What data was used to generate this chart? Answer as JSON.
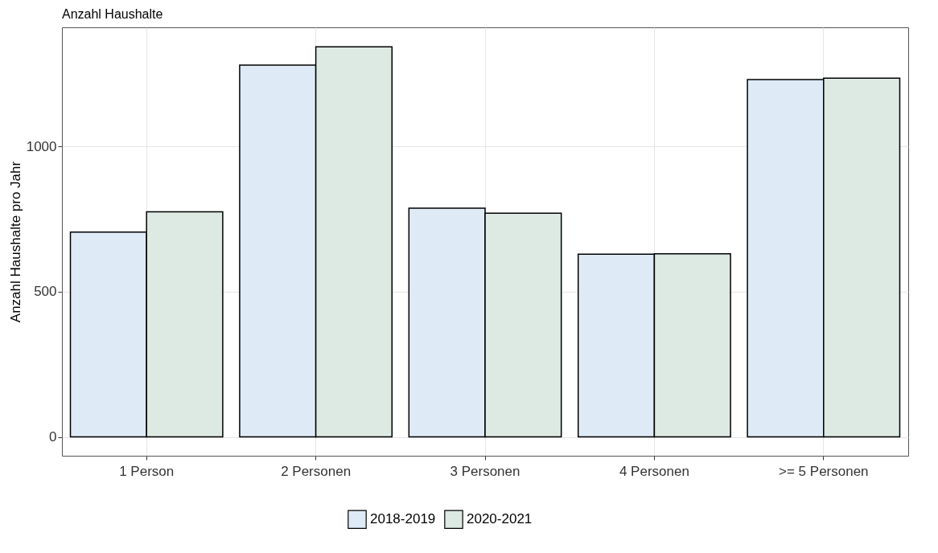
{
  "chart_data": {
    "type": "bar",
    "title": "Anzahl Haushalte",
    "ylabel": "Anzahl Haushalte pro Jahr",
    "categories": [
      "1 Person",
      "2 Personen",
      "3 Personen",
      "4 Personen",
      ">= 5 Personen"
    ],
    "series": [
      {
        "name": "2018-2019",
        "color": "#deebf7",
        "values": [
          705,
          1280,
          787,
          629,
          1230
        ]
      },
      {
        "name": "2020-2021",
        "color": "#dde9e3",
        "values": [
          775,
          1343,
          770,
          630,
          1235
        ]
      }
    ],
    "ylim": [
      -65,
      1410
    ],
    "yticks": [
      0,
      500,
      1000
    ],
    "grid": true,
    "legend": "bottom"
  }
}
